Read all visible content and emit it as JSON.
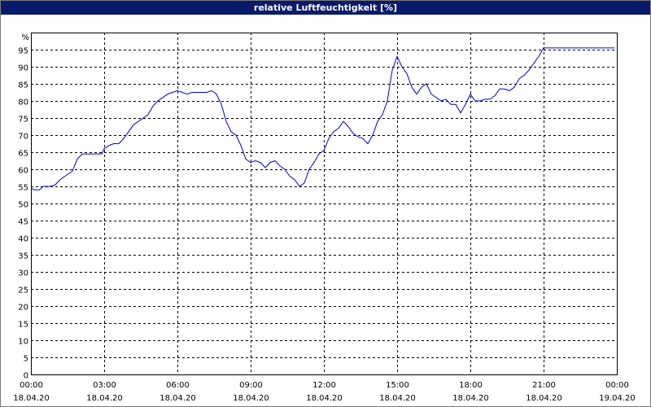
{
  "title": "relative Luftfeuchtigkeit [%]",
  "chart_data": {
    "type": "line",
    "title": "relative Luftfeuchtigkeit [%]",
    "ylabel": "%",
    "ylim": [
      0,
      100
    ],
    "xlim": [
      0,
      24
    ],
    "y_ticks": [
      0,
      5,
      10,
      15,
      20,
      25,
      30,
      35,
      40,
      45,
      50,
      55,
      60,
      65,
      70,
      75,
      80,
      85,
      90,
      95
    ],
    "x_ticks": [
      {
        "time": "00:00",
        "date": "18.04.20",
        "hour": 0
      },
      {
        "time": "03:00",
        "date": "18.04.20",
        "hour": 3
      },
      {
        "time": "06:00",
        "date": "18.04.20",
        "hour": 6
      },
      {
        "time": "09:00",
        "date": "18.04.20",
        "hour": 9
      },
      {
        "time": "12:00",
        "date": "18.04.20",
        "hour": 12
      },
      {
        "time": "15:00",
        "date": "18.04.20",
        "hour": 15
      },
      {
        "time": "18:00",
        "date": "18.04.20",
        "hour": 18
      },
      {
        "time": "21:00",
        "date": "18.04.20",
        "hour": 21
      },
      {
        "time": "00:00",
        "date": "19.04.20",
        "hour": 24
      }
    ],
    "grid": true,
    "line_color": "#0000c8",
    "series": [
      {
        "x": [
          0,
          0.15,
          0.35,
          0.5,
          0.8,
          1.0,
          1.2,
          1.4,
          1.7,
          1.9,
          2.1,
          2.3,
          2.6,
          2.9,
          3.0,
          3.2,
          3.4,
          3.6,
          3.8,
          4.0,
          4.2,
          4.4,
          4.6,
          4.8,
          5.0,
          5.2,
          5.4,
          5.6,
          5.8,
          6.0,
          6.2,
          6.4,
          6.6,
          6.8,
          7.0,
          7.2,
          7.4,
          7.6,
          7.8,
          8.0,
          8.2,
          8.4,
          8.6,
          8.8,
          9.0,
          9.2,
          9.4,
          9.6,
          9.8,
          10.0,
          10.2,
          10.4,
          10.6,
          10.8,
          11.0,
          11.2,
          11.4,
          11.6,
          11.8,
          12.0,
          12.2,
          12.4,
          12.6,
          12.8,
          13.0,
          13.2,
          13.4,
          13.6,
          13.8,
          14.0,
          14.2,
          14.4,
          14.6,
          14.8,
          15.0,
          15.2,
          15.4,
          15.6,
          15.8,
          16.0,
          16.2,
          16.4,
          16.6,
          16.8,
          17.0,
          17.2,
          17.4,
          17.6,
          17.8,
          18.0,
          18.2,
          18.4,
          18.6,
          18.8,
          19.0,
          19.2,
          19.4,
          19.6,
          19.8,
          20.0,
          20.2,
          20.4,
          20.6,
          20.8,
          21.0,
          21.5,
          22.0,
          22.5,
          23.0,
          23.5,
          23.9
        ],
        "values": [
          54.5,
          54,
          54,
          55,
          55,
          55.5,
          57,
          58,
          59.5,
          63,
          64.5,
          64.5,
          64.5,
          64.5,
          66,
          67,
          67.5,
          67.5,
          69,
          71,
          73,
          74,
          75,
          76,
          78.5,
          80,
          81,
          82,
          82.5,
          83,
          82.5,
          82,
          82.5,
          82.5,
          82.5,
          82.5,
          83,
          82,
          79,
          74,
          71,
          70,
          67,
          63,
          62,
          62.5,
          62,
          60.5,
          62,
          62.5,
          61,
          60,
          58,
          57,
          55,
          56,
          60,
          62,
          64.5,
          65.5,
          69,
          71,
          72,
          74,
          72.5,
          70.5,
          69.5,
          69,
          67.5,
          70,
          74,
          76,
          80,
          89,
          93,
          90,
          88,
          84,
          82,
          84,
          85,
          82,
          81,
          80,
          80.5,
          79,
          79,
          76.5,
          79,
          82,
          80,
          80,
          80.5,
          80.5,
          81.5,
          83.5,
          83.5,
          83,
          84,
          86.5,
          87.5,
          89,
          91,
          93,
          95.5,
          95.5,
          95.5,
          95.5,
          95.5,
          95.5,
          95.5
        ]
      }
    ]
  }
}
